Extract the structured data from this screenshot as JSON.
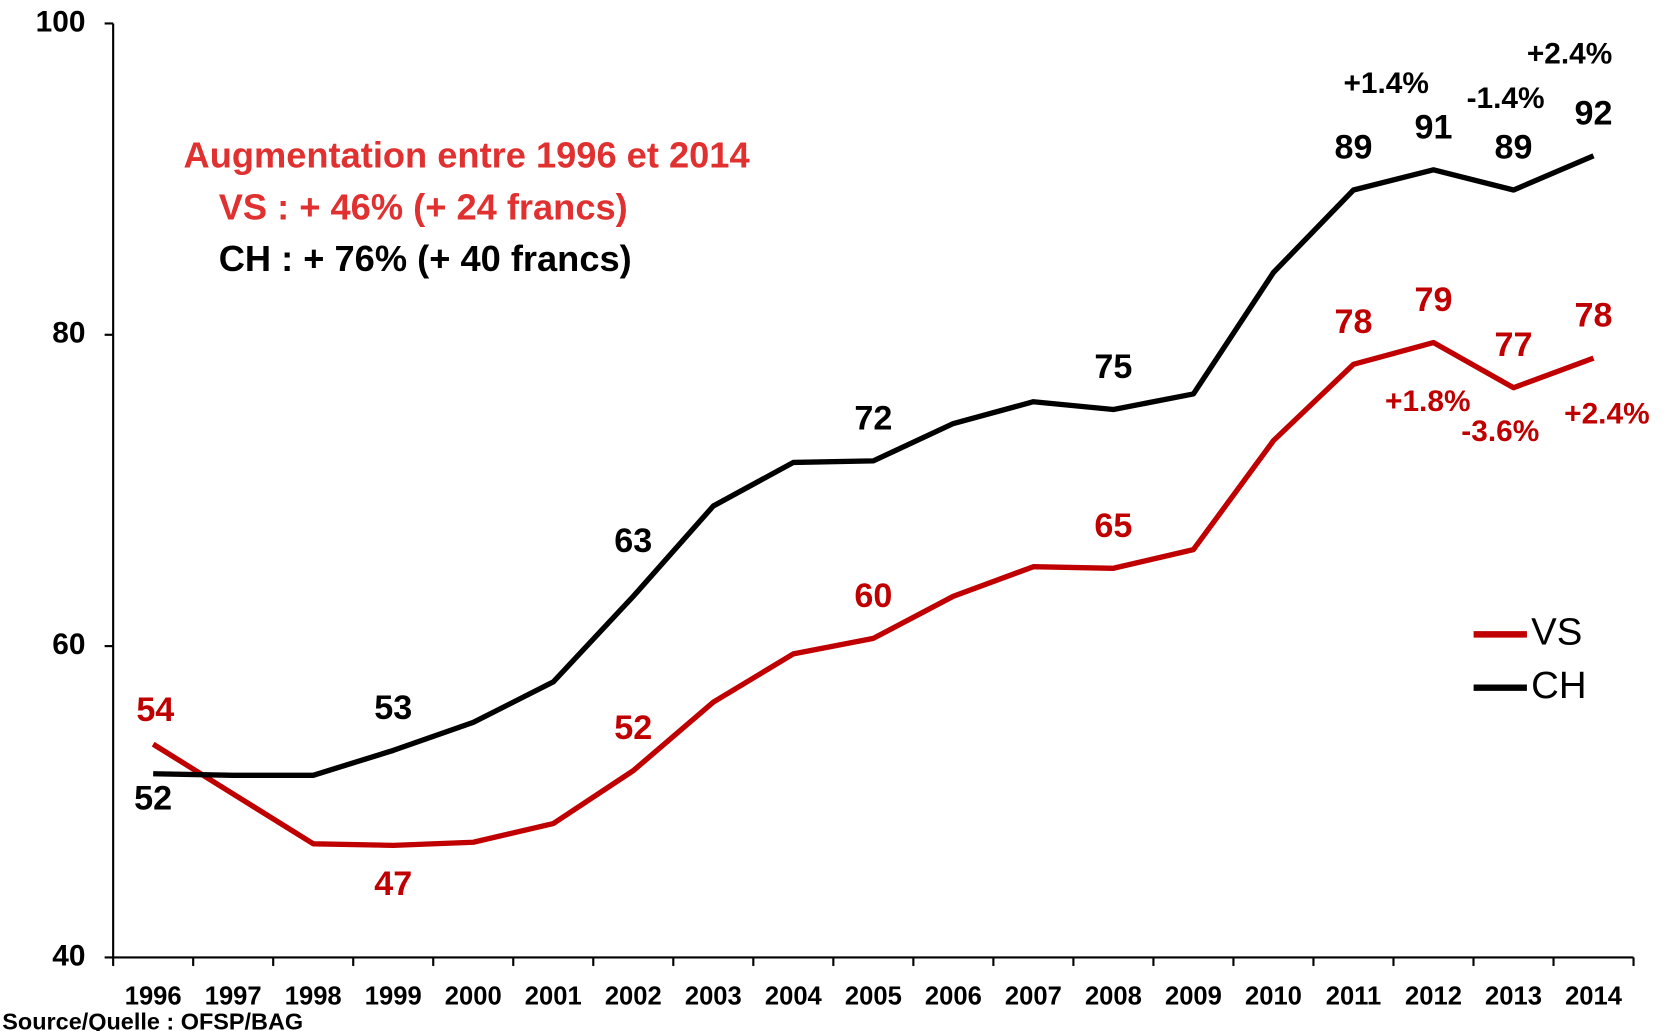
{
  "chart_data": {
    "type": "line",
    "categories": [
      "1996",
      "1997",
      "1998",
      "1999",
      "2000",
      "2001",
      "2002",
      "2003",
      "2004",
      "2005",
      "2006",
      "2007",
      "2008",
      "2009",
      "2010",
      "2011",
      "2012",
      "2013",
      "2014"
    ],
    "series": [
      {
        "name": "VS",
        "color": "#c00000",
        "values": [
          53.7,
          50.5,
          47.3,
          47.2,
          47.4,
          48.6,
          52.0,
          56.4,
          59.5,
          60.5,
          63.2,
          65.1,
          65.0,
          66.2,
          73.2,
          78.1,
          79.5,
          76.6,
          78.5
        ],
        "value_labels": [
          "54",
          null,
          null,
          "47",
          null,
          null,
          "52",
          null,
          null,
          "60",
          null,
          null,
          "65",
          null,
          null,
          "78",
          "79",
          "77",
          "78"
        ]
      },
      {
        "name": "CH",
        "color": "#000000",
        "values": [
          51.8,
          51.7,
          51.7,
          53.3,
          55.1,
          57.7,
          63.2,
          69.0,
          71.8,
          71.9,
          74.3,
          75.7,
          75.2,
          76.2,
          84.0,
          89.3,
          90.6,
          89.3,
          91.5
        ],
        "value_labels": [
          "52",
          null,
          null,
          "53",
          null,
          null,
          "63",
          null,
          null,
          "72",
          null,
          null,
          "75",
          null,
          null,
          "89",
          "91",
          "89",
          "92"
        ]
      }
    ],
    "ylim": [
      40,
      100
    ],
    "yticks": [
      40,
      60,
      80,
      100
    ],
    "legend": "right",
    "text_box": {
      "title": "Augmentation entre 1996 et 2014",
      "lines": [
        "VS : + 46% (+ 24 francs)",
        "CH : + 76% (+ 40 francs)"
      ],
      "title_color": "#e03030"
    },
    "annotations": [
      {
        "text": "+1.4%",
        "color": "#000000"
      },
      {
        "text": "-1.4%",
        "color": "#000000"
      },
      {
        "text": "+2.4%",
        "color": "#000000"
      },
      {
        "text": "+1.8%",
        "color": "#c00000"
      },
      {
        "text": "-3.6%",
        "color": "#c00000"
      },
      {
        "text": "+2.4%",
        "color": "#c00000"
      }
    ],
    "source": "Source/Quelle : OFSP/BAG"
  }
}
